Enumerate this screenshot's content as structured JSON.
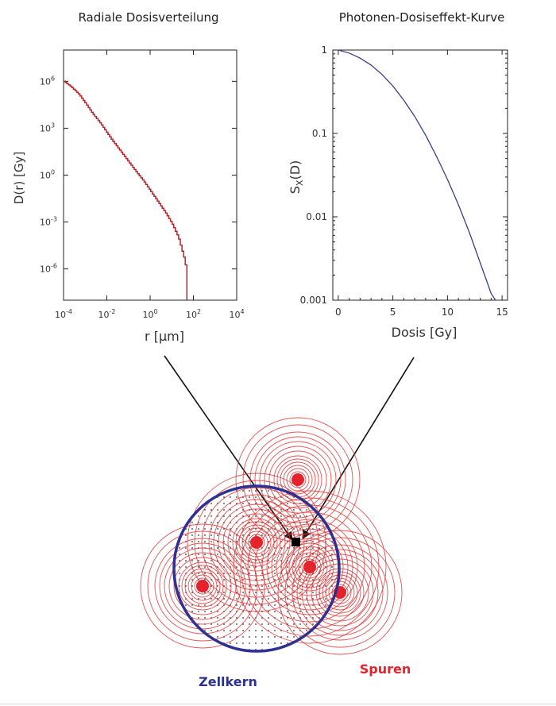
{
  "left_panel": {
    "title": "Radiale Dosisverteilung",
    "xlabel": "r  [µm]",
    "ylabel": "D(r)   [Gy]",
    "x_ticks": [
      {
        "base": "10",
        "exp": "-4"
      },
      {
        "base": "10",
        "exp": "-2"
      },
      {
        "base": "10",
        "exp": "0"
      },
      {
        "base": "10",
        "exp": "2"
      },
      {
        "base": "10",
        "exp": "4"
      }
    ],
    "y_ticks": [
      {
        "base": "10",
        "exp": "6"
      },
      {
        "base": "10",
        "exp": "3"
      },
      {
        "base": "10",
        "exp": "0"
      },
      {
        "base": "10",
        "exp": "-3"
      },
      {
        "base": "10",
        "exp": "-6"
      }
    ]
  },
  "right_panel": {
    "title": "Photonen-Dosiseffekt-Kurve",
    "xlabel": "Dosis  [Gy]",
    "ylabel_main": "S",
    "ylabel_sub": "X",
    "ylabel_tail": "(D)",
    "x_ticks": [
      "0",
      "5",
      "10",
      "15"
    ],
    "y_ticks": [
      "1",
      "0.1",
      "0.01",
      "0.001"
    ]
  },
  "diagram": {
    "nucleus_label": "Zellkern",
    "tracks_label": "Spuren"
  },
  "colors": {
    "dose_curve": "#b3262b",
    "survival_curve": "#3a3f86",
    "track_rings": "#e03535",
    "track_core": "#e5212b",
    "nucleus": "#2e3192",
    "nucleus_label": "#2e3192",
    "tracks_label": "#e5212b"
  },
  "chart_data": [
    {
      "type": "line",
      "title": "Radiale Dosisverteilung",
      "xlabel": "r  [µm]",
      "ylabel": "D(r)   [Gy]",
      "x_scale": "log",
      "y_scale": "log",
      "xlim": [
        0.0001,
        10000
      ],
      "ylim": [
        1e-08,
        100000000.0
      ],
      "series": [
        {
          "x": [
            0.0001,
            0.0002,
            0.0005,
            0.001,
            0.002,
            0.005,
            0.01,
            0.02,
            0.05,
            0.1,
            0.2,
            0.5,
            1,
            2,
            5,
            10,
            20,
            40,
            50
          ],
          "y": [
            1000000,
            500000,
            150000,
            40000,
            10000,
            2000,
            500,
            130,
            25,
            7,
            2,
            0.4,
            0.1,
            0.025,
            0.004,
            0.0008,
            0.0001,
            3e-06,
            3e-07
          ]
        }
      ]
    },
    {
      "type": "line",
      "title": "Photonen-Dosiseffekt-Kurve",
      "xlabel": "Dosis  [Gy]",
      "ylabel": "S_X(D)",
      "y_scale": "log",
      "xlim": [
        -0.5,
        15.5
      ],
      "ylim": [
        0.001,
        1
      ],
      "series": [
        {
          "x": [
            0,
            1,
            2,
            3,
            4,
            5,
            6,
            7,
            8,
            9,
            10,
            11,
            12,
            13,
            14,
            14.4
          ],
          "y": [
            1,
            0.92,
            0.8,
            0.66,
            0.51,
            0.37,
            0.25,
            0.16,
            0.095,
            0.053,
            0.028,
            0.014,
            0.0065,
            0.0028,
            0.0012,
            0.001
          ]
        }
      ]
    }
  ]
}
